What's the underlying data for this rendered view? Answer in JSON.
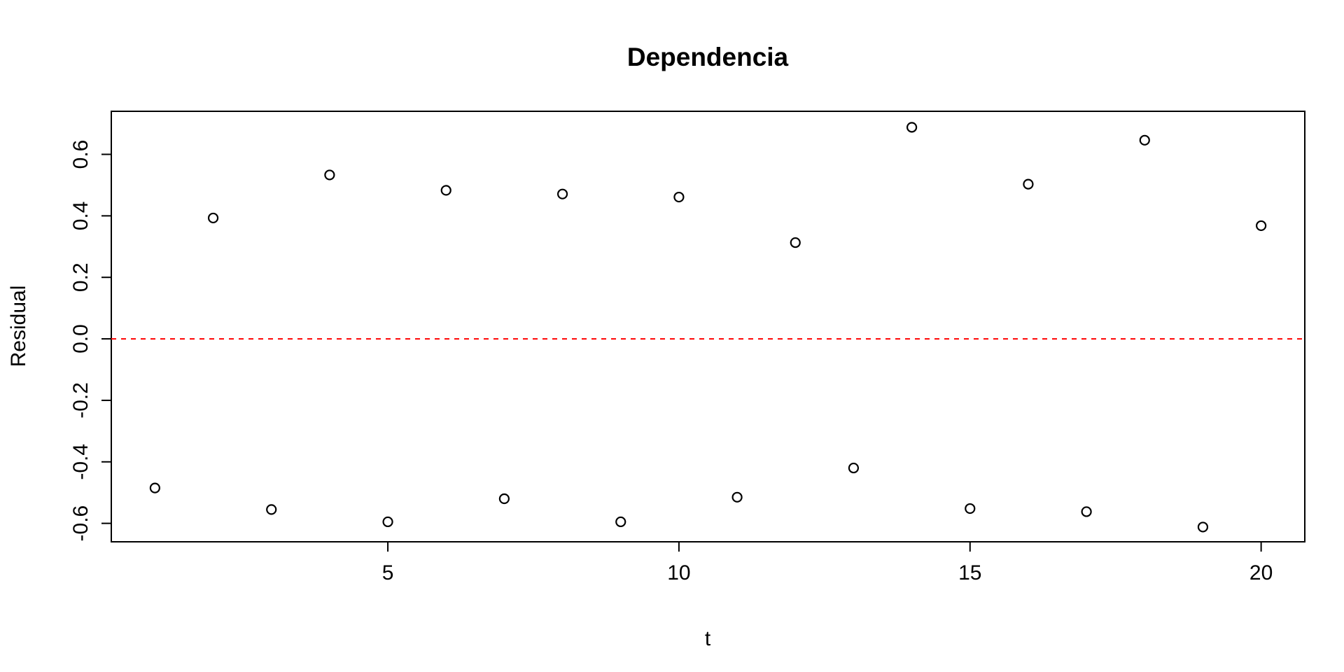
{
  "chart_data": {
    "type": "scatter",
    "title": "Dependencia",
    "xlabel": "t",
    "ylabel": "Residual",
    "xlim": [
      0.25,
      20.75
    ],
    "ylim": [
      -0.66,
      0.74
    ],
    "x_ticks": [
      5,
      10,
      15,
      20
    ],
    "y_ticks": [
      -0.6,
      -0.4,
      -0.2,
      0.0,
      0.2,
      0.4,
      0.6
    ],
    "y_tick_labels": [
      "-0.6",
      "-0.4",
      "-0.2",
      "0.0",
      "0.2",
      "0.4",
      "0.6"
    ],
    "grid": false,
    "reference_line": {
      "y": 0,
      "style": "dashed",
      "color": "#ff0000"
    },
    "series": [
      {
        "x": [
          1,
          2,
          3,
          4,
          5,
          6,
          7,
          8,
          9,
          10,
          11,
          12,
          13,
          14,
          15,
          16,
          17,
          18,
          19,
          20
        ],
        "y": [
          -0.485,
          0.393,
          -0.555,
          0.533,
          -0.595,
          0.483,
          -0.52,
          0.471,
          -0.595,
          0.461,
          -0.515,
          0.313,
          -0.42,
          0.688,
          -0.552,
          0.503,
          -0.562,
          0.646,
          -0.612,
          0.368
        ],
        "marker": "open-circle",
        "color": "#000000"
      }
    ]
  }
}
